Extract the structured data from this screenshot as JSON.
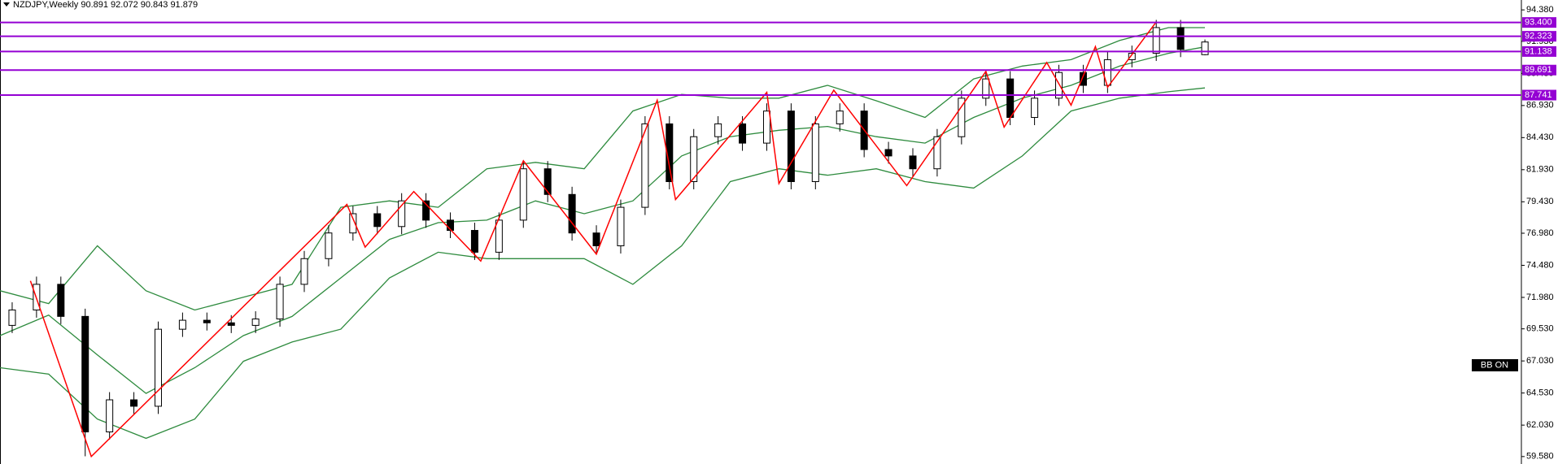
{
  "chart_data": {
    "type": "candlestick",
    "title": "NZDJPY,Weekly 90.891 92.072 90.843 91.879",
    "badge": "BB ON",
    "xlim": [
      0,
      250
    ],
    "ylim": [
      59.0,
      95.15
    ],
    "yticks": [
      {
        "value": 94.38,
        "label": "94.380"
      },
      {
        "value": 91.93,
        "label": "91.930"
      },
      {
        "value": 89.43,
        "label": "89.430"
      },
      {
        "value": 86.93,
        "label": "86.930"
      },
      {
        "value": 84.43,
        "label": "84.430"
      },
      {
        "value": 81.93,
        "label": "81.930"
      },
      {
        "value": 79.43,
        "label": "79.430"
      },
      {
        "value": 76.98,
        "label": "76.980"
      },
      {
        "value": 74.48,
        "label": "74.480"
      },
      {
        "value": 71.98,
        "label": "71.980"
      },
      {
        "value": 69.53,
        "label": "69.530"
      },
      {
        "value": 67.03,
        "label": "67.030"
      },
      {
        "value": 64.53,
        "label": "64.530"
      },
      {
        "value": 62.03,
        "label": "62.030"
      },
      {
        "value": 59.58,
        "label": "59.580"
      }
    ],
    "x": [
      2,
      6,
      10,
      14,
      18,
      22,
      26,
      30,
      34,
      38,
      42,
      46,
      50,
      54,
      58,
      62,
      66,
      70,
      74,
      78,
      82,
      86,
      90,
      94,
      98,
      102,
      106,
      110,
      114,
      118,
      122,
      126,
      130,
      134,
      138,
      142,
      146,
      150,
      154,
      158,
      162,
      166,
      170,
      174,
      178,
      182,
      186,
      190,
      194,
      198
    ],
    "open": [
      69.8,
      71.0,
      73.0,
      70.5,
      61.5,
      64.0,
      63.5,
      69.5,
      70.2,
      70.0,
      69.8,
      70.3,
      73.0,
      75.0,
      77.0,
      78.5,
      77.5,
      79.5,
      78.0,
      77.2,
      75.5,
      78.0,
      82.0,
      80.0,
      77.0,
      76.0,
      79.0,
      85.5,
      81.0,
      84.5,
      85.5,
      84.0,
      86.5,
      81.0,
      85.5,
      86.5,
      83.5,
      83.0,
      82.0,
      84.5,
      87.5,
      89.0,
      86.0,
      87.5,
      89.5,
      88.5,
      90.5,
      91.0,
      93.0,
      90.891
    ],
    "high": [
      71.6,
      73.6,
      73.6,
      71.1,
      64.6,
      64.6,
      70.1,
      70.8,
      70.8,
      70.6,
      70.9,
      73.6,
      75.6,
      77.6,
      79.1,
      79.1,
      80.1,
      80.1,
      78.6,
      77.8,
      78.6,
      82.6,
      82.6,
      80.6,
      77.6,
      79.6,
      86.1,
      86.1,
      85.1,
      86.1,
      86.1,
      87.1,
      87.1,
      86.1,
      87.1,
      87.1,
      84.1,
      83.6,
      85.1,
      88.1,
      89.6,
      89.6,
      88.1,
      90.1,
      90.1,
      91.1,
      91.6,
      93.6,
      93.6,
      92.072
    ],
    "low": [
      69.2,
      70.4,
      69.9,
      59.6,
      60.9,
      62.9,
      62.9,
      68.9,
      69.4,
      69.2,
      69.2,
      69.7,
      72.4,
      74.4,
      76.4,
      76.9,
      76.9,
      77.4,
      76.6,
      74.9,
      74.9,
      77.4,
      79.4,
      76.4,
      75.4,
      75.4,
      78.4,
      80.4,
      80.4,
      83.9,
      83.4,
      83.4,
      80.4,
      80.4,
      84.9,
      82.9,
      82.4,
      81.4,
      81.4,
      83.9,
      86.9,
      85.4,
      85.4,
      86.9,
      87.9,
      87.9,
      89.9,
      90.4,
      90.7,
      90.843
    ],
    "close": [
      71.0,
      73.0,
      70.5,
      61.5,
      64.0,
      63.5,
      69.5,
      70.2,
      70.0,
      69.8,
      70.3,
      73.0,
      75.0,
      77.0,
      78.5,
      77.5,
      79.5,
      78.0,
      77.2,
      75.5,
      78.0,
      82.0,
      80.0,
      77.0,
      76.0,
      79.0,
      85.5,
      81.0,
      84.5,
      85.5,
      84.0,
      86.5,
      81.0,
      85.5,
      86.5,
      83.5,
      83.0,
      82.0,
      84.5,
      87.5,
      89.0,
      86.0,
      87.5,
      89.5,
      88.5,
      90.5,
      91.0,
      93.0,
      91.3,
      91.879
    ],
    "bands": {
      "color": "#2e8b3e",
      "x": [
        0,
        8,
        16,
        24,
        32,
        40,
        48,
        56,
        64,
        72,
        80,
        88,
        96,
        104,
        112,
        120,
        128,
        136,
        144,
        152,
        160,
        168,
        176,
        184,
        192,
        198
      ],
      "series": [
        {
          "values": [
            72.5,
            71.5,
            76.0,
            72.5,
            71.0,
            72.0,
            73.0,
            79.0,
            79.5,
            79.0,
            82.0,
            82.5,
            82.0,
            86.5,
            87.8,
            87.5,
            87.5,
            88.5,
            87.3,
            86.0,
            89.0,
            90.0,
            90.5,
            92.0,
            93.0,
            93.0
          ]
        },
        {
          "values": [
            69.0,
            70.6,
            67.5,
            64.5,
            66.5,
            69.0,
            70.5,
            73.5,
            76.5,
            77.8,
            78.0,
            79.5,
            78.5,
            79.5,
            83.0,
            84.5,
            85.0,
            85.3,
            84.5,
            84.0,
            86.0,
            87.5,
            88.5,
            90.0,
            91.0,
            91.5
          ]
        },
        {
          "values": [
            66.5,
            66.0,
            62.5,
            61.0,
            62.5,
            67.0,
            68.5,
            69.5,
            73.5,
            75.5,
            75.0,
            75.0,
            75.0,
            73.0,
            76.0,
            81.0,
            82.0,
            81.5,
            82.0,
            81.0,
            80.5,
            83.0,
            86.5,
            87.5,
            88.0,
            88.3
          ]
        }
      ]
    },
    "zigzag": {
      "color": "#ff0000",
      "x": [
        5,
        15,
        57,
        60,
        68,
        79,
        86,
        98,
        108,
        111,
        126,
        128,
        137,
        149,
        162,
        165,
        172,
        176,
        180,
        182,
        190
      ],
      "y": [
        73.27,
        59.58,
        79.22,
        75.9,
        80.23,
        74.81,
        82.62,
        75.35,
        87.34,
        79.61,
        87.96,
        80.85,
        88.12,
        80.69,
        89.59,
        85.25,
        90.28,
        86.96,
        91.52,
        88.35,
        93.45
      ]
    },
    "levels": {
      "color": "#9400d3",
      "values": [
        93.4,
        92.323,
        91.138,
        89.691,
        87.741
      ],
      "value_labels": [
        "93.400",
        "92.323",
        "91.138",
        "89.691",
        "87.741"
      ]
    }
  }
}
